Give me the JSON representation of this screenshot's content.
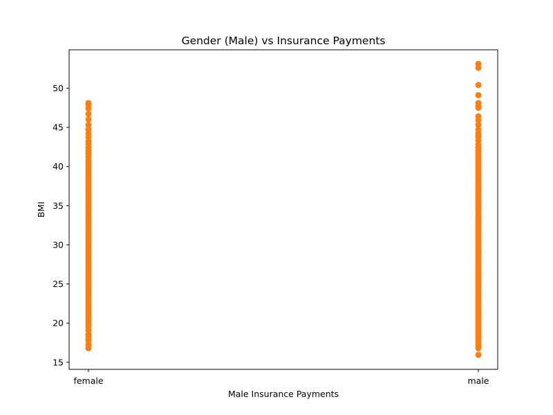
{
  "chart_data": {
    "type": "scatter",
    "title": "Gender (Male) vs Insurance Payments",
    "xlabel": "Male Insurance Payments",
    "ylabel": "BMI",
    "categories": [
      "female",
      "male"
    ],
    "ylim": [
      14.1,
      54.9
    ],
    "yticks": [
      15,
      20,
      25,
      30,
      35,
      40,
      45,
      50
    ],
    "grid": false,
    "marker_color": "#ff7f0e",
    "series": [
      {
        "category": "female",
        "values": [
          16.8,
          17.2,
          17.3,
          17.8,
          18.0,
          18.3,
          18.6,
          19.1,
          19.5,
          19.8,
          20.0,
          20.2,
          20.5,
          20.8,
          21.0,
          21.3,
          21.6,
          21.9,
          22.2,
          22.5,
          22.8,
          23.1,
          23.4,
          23.7,
          24.0,
          24.3,
          24.6,
          24.9,
          25.2,
          25.5,
          25.8,
          26.1,
          26.4,
          26.7,
          27.0,
          27.3,
          27.6,
          27.9,
          28.2,
          28.5,
          28.8,
          29.1,
          29.4,
          29.7,
          30.0,
          30.3,
          30.6,
          30.9,
          31.2,
          31.5,
          31.8,
          32.1,
          32.4,
          32.7,
          33.0,
          33.3,
          33.6,
          33.9,
          34.2,
          34.5,
          34.8,
          35.1,
          35.4,
          35.7,
          36.0,
          36.3,
          36.6,
          36.9,
          37.2,
          37.5,
          37.8,
          38.1,
          38.4,
          38.7,
          39.0,
          39.3,
          39.6,
          39.9,
          40.2,
          40.5,
          40.8,
          41.2,
          41.6,
          42.0,
          42.4,
          42.8,
          43.2,
          43.7,
          44.2,
          44.7,
          45.3,
          46.0,
          46.7,
          47.4,
          47.9,
          48.1
        ]
      },
      {
        "category": "male",
        "values": [
          15.96,
          16.8,
          17.1,
          17.4,
          17.7,
          18.0,
          18.3,
          18.6,
          18.9,
          19.2,
          19.5,
          19.8,
          20.1,
          20.4,
          20.7,
          21.0,
          21.3,
          21.6,
          21.9,
          22.2,
          22.5,
          22.8,
          23.1,
          23.4,
          23.7,
          24.0,
          24.3,
          24.6,
          24.9,
          25.2,
          25.5,
          25.8,
          26.1,
          26.4,
          26.7,
          27.0,
          27.3,
          27.6,
          27.9,
          28.2,
          28.5,
          28.8,
          29.1,
          29.4,
          29.7,
          30.0,
          30.3,
          30.6,
          30.9,
          31.2,
          31.5,
          31.8,
          32.1,
          32.4,
          32.7,
          33.0,
          33.3,
          33.6,
          33.9,
          34.2,
          34.5,
          34.8,
          35.1,
          35.4,
          35.7,
          36.0,
          36.3,
          36.6,
          36.9,
          37.2,
          37.5,
          37.8,
          38.1,
          38.4,
          38.7,
          39.0,
          39.3,
          39.6,
          39.9,
          40.2,
          40.5,
          40.8,
          41.1,
          41.4,
          41.7,
          42.0,
          42.4,
          42.8,
          43.3,
          43.8,
          44.2,
          44.7,
          45.3,
          45.9,
          46.4,
          47.5,
          47.7,
          48.1,
          49.1,
          50.4,
          52.6,
          53.1
        ]
      }
    ]
  }
}
